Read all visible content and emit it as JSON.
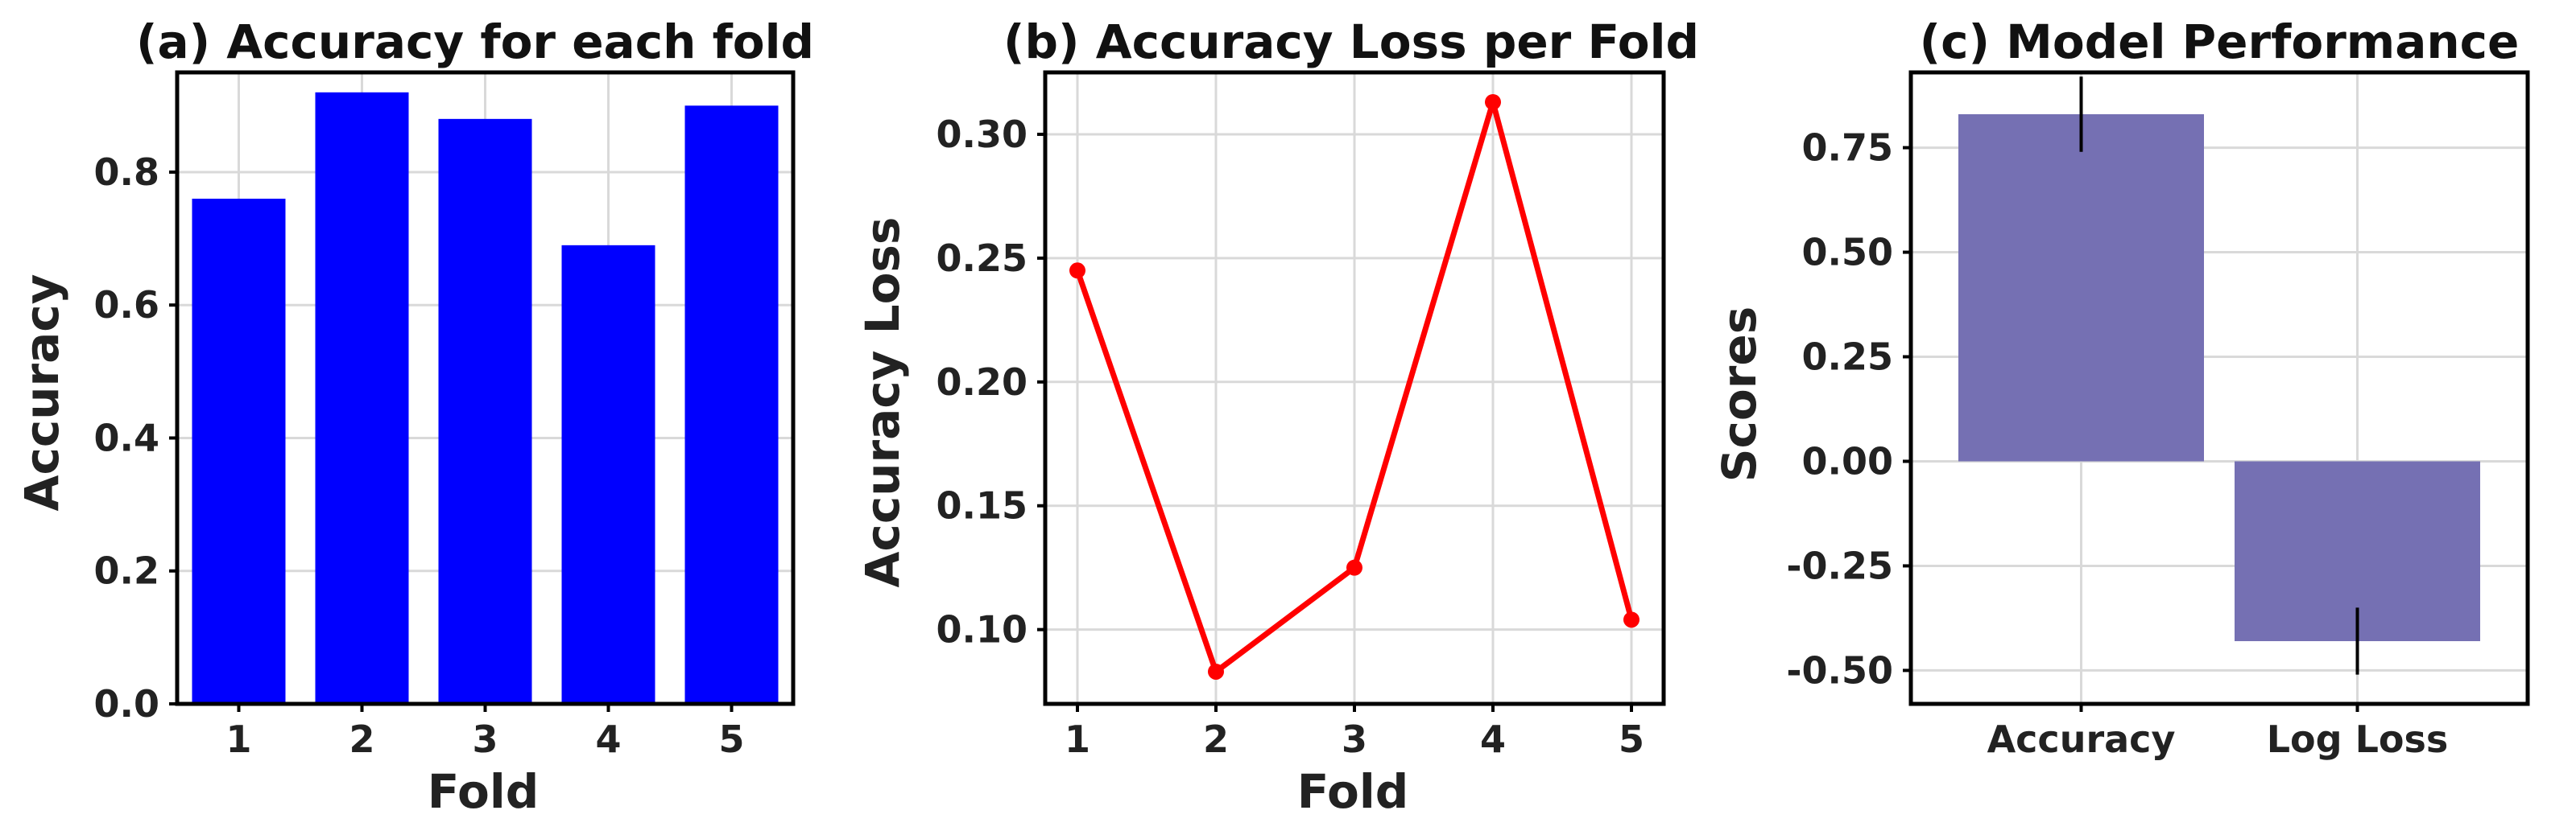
{
  "chart_data": [
    {
      "type": "bar",
      "title": "(a) Accuracy for each fold",
      "xlabel": "Fold",
      "ylabel": "Accuracy",
      "categories": [
        "1",
        "2",
        "3",
        "4",
        "5"
      ],
      "values": [
        0.76,
        0.92,
        0.88,
        0.69,
        0.9
      ],
      "ylim": [
        0,
        0.95
      ],
      "yticks": [
        "0.0",
        "0.2",
        "0.4",
        "0.6",
        "0.8"
      ],
      "color": "#0000ff",
      "grid": true
    },
    {
      "type": "line",
      "title": "(b) Accuracy Loss per Fold",
      "xlabel": "Fold",
      "ylabel": "Accuracy Loss",
      "x": [
        "1",
        "2",
        "3",
        "4",
        "5"
      ],
      "values": [
        0.245,
        0.083,
        0.125,
        0.313,
        0.104
      ],
      "ylim": [
        0.07,
        0.325
      ],
      "yticks": [
        "0.10",
        "0.15",
        "0.20",
        "0.25",
        "0.30"
      ],
      "color": "#ff0000",
      "grid": true
    },
    {
      "type": "bar",
      "title": "(c) Model Performance",
      "xlabel": "",
      "ylabel": "Scores",
      "categories": [
        "Accuracy",
        "Log Loss"
      ],
      "values": [
        0.83,
        -0.43
      ],
      "errors": [
        0.09,
        0.08
      ],
      "ylim": [
        -0.58,
        0.93
      ],
      "yticks": [
        "-0.50",
        "-0.25",
        "0.00",
        "0.25",
        "0.50",
        "0.75"
      ],
      "color": "#7570b3",
      "grid": true
    }
  ]
}
